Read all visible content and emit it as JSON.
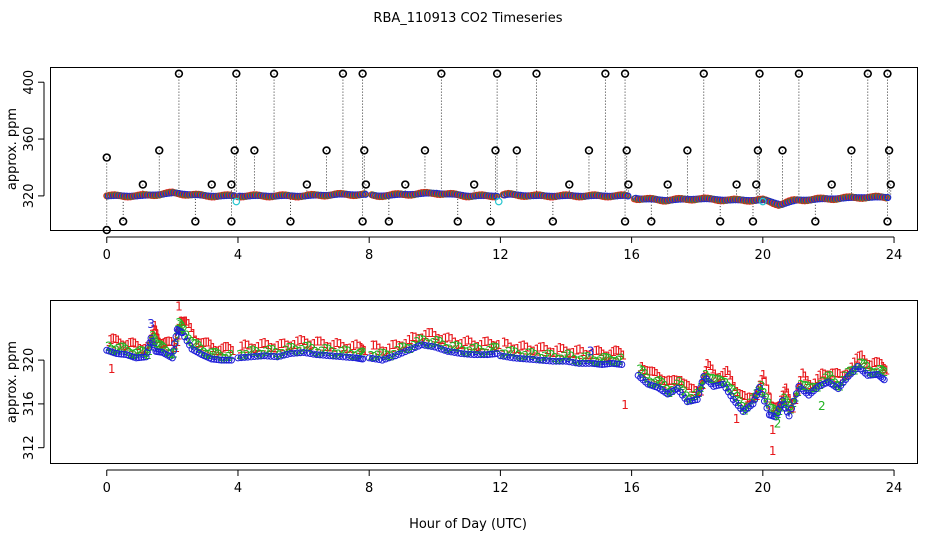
{
  "title": "RBA_110913  CO2 Timeseries",
  "xlabel": "Hour of Day (UTC)",
  "chart_data": [
    {
      "type": "scatter",
      "ylabel": "approx. ppm",
      "xlim": [
        -1.7,
        24.7
      ],
      "ylim": [
        296,
        410
      ],
      "x_ticks": [
        0,
        4,
        8,
        12,
        16,
        20,
        24
      ],
      "y_ticks": [
        320,
        360,
        400
      ],
      "colors": {
        "series_1": "#e8161a",
        "series_2": "#22b322",
        "series_3": "#1f1fd8",
        "cyan": "#26c6d0",
        "outlier": "#000000"
      },
      "baseline": [
        [
          0,
          320
        ],
        [
          1,
          320
        ],
        [
          2,
          322
        ],
        [
          3,
          320
        ],
        [
          4,
          320
        ],
        [
          5,
          320
        ],
        [
          6,
          320
        ],
        [
          7,
          321
        ],
        [
          7.8,
          321
        ],
        [
          8.2,
          320
        ],
        [
          9,
          321
        ],
        [
          10,
          322
        ],
        [
          11,
          320
        ],
        [
          11.9,
          320
        ],
        [
          12.2,
          321
        ],
        [
          13,
          320
        ],
        [
          14,
          320
        ],
        [
          15,
          320
        ],
        [
          15.8,
          320
        ],
        [
          16.2,
          318
        ],
        [
          17,
          317
        ],
        [
          18,
          318
        ],
        [
          19,
          317
        ],
        [
          20,
          317
        ],
        [
          20.5,
          314
        ],
        [
          21,
          317
        ],
        [
          22,
          318
        ],
        [
          23,
          319
        ],
        [
          23.8,
          319
        ]
      ],
      "spikes": [
        {
          "x": 0.0,
          "top": 347,
          "bottom": 296
        },
        {
          "x": 0.5,
          "top": 320,
          "bottom": 302
        },
        {
          "x": 1.1,
          "top": 328,
          "bottom": 320
        },
        {
          "x": 1.6,
          "top": 352,
          "bottom": 320
        },
        {
          "x": 2.2,
          "top": 406,
          "bottom": 320
        },
        {
          "x": 2.7,
          "top": 320,
          "bottom": 302
        },
        {
          "x": 3.2,
          "top": 328,
          "bottom": 320
        },
        {
          "x": 3.8,
          "top": 328,
          "bottom": 302
        },
        {
          "x": 3.9,
          "top": 352,
          "bottom": 320
        },
        {
          "x": 3.95,
          "top": 406,
          "bottom": 320
        },
        {
          "x": 4.5,
          "top": 352,
          "bottom": 320
        },
        {
          "x": 5.1,
          "top": 406,
          "bottom": 320
        },
        {
          "x": 5.6,
          "top": 320,
          "bottom": 302
        },
        {
          "x": 6.1,
          "top": 328,
          "bottom": 320
        },
        {
          "x": 6.7,
          "top": 352,
          "bottom": 320
        },
        {
          "x": 7.2,
          "top": 406,
          "bottom": 320
        },
        {
          "x": 7.8,
          "top": 406,
          "bottom": 302
        },
        {
          "x": 7.85,
          "top": 352,
          "bottom": 320
        },
        {
          "x": 7.9,
          "top": 328,
          "bottom": 320
        },
        {
          "x": 8.6,
          "top": 320,
          "bottom": 302
        },
        {
          "x": 9.1,
          "top": 328,
          "bottom": 320
        },
        {
          "x": 9.7,
          "top": 352,
          "bottom": 320
        },
        {
          "x": 10.2,
          "top": 406,
          "bottom": 320
        },
        {
          "x": 10.7,
          "top": 320,
          "bottom": 302
        },
        {
          "x": 11.2,
          "top": 328,
          "bottom": 320
        },
        {
          "x": 11.7,
          "top": 320,
          "bottom": 302
        },
        {
          "x": 11.85,
          "top": 352,
          "bottom": 320
        },
        {
          "x": 11.9,
          "top": 406,
          "bottom": 320
        },
        {
          "x": 12.5,
          "top": 352,
          "bottom": 320
        },
        {
          "x": 13.1,
          "top": 406,
          "bottom": 320
        },
        {
          "x": 13.6,
          "top": 320,
          "bottom": 302
        },
        {
          "x": 14.1,
          "top": 328,
          "bottom": 320
        },
        {
          "x": 14.7,
          "top": 352,
          "bottom": 320
        },
        {
          "x": 15.2,
          "top": 406,
          "bottom": 320
        },
        {
          "x": 15.8,
          "top": 406,
          "bottom": 302
        },
        {
          "x": 15.85,
          "top": 352,
          "bottom": 320
        },
        {
          "x": 15.9,
          "top": 328,
          "bottom": 320
        },
        {
          "x": 16.6,
          "top": 318,
          "bottom": 302
        },
        {
          "x": 17.1,
          "top": 328,
          "bottom": 318
        },
        {
          "x": 17.7,
          "top": 352,
          "bottom": 318
        },
        {
          "x": 18.2,
          "top": 406,
          "bottom": 318
        },
        {
          "x": 18.7,
          "top": 317,
          "bottom": 302
        },
        {
          "x": 19.2,
          "top": 328,
          "bottom": 317
        },
        {
          "x": 19.7,
          "top": 317,
          "bottom": 302
        },
        {
          "x": 19.8,
          "top": 328,
          "bottom": 317
        },
        {
          "x": 19.85,
          "top": 352,
          "bottom": 317
        },
        {
          "x": 19.9,
          "top": 406,
          "bottom": 317
        },
        {
          "x": 20.6,
          "top": 352,
          "bottom": 314
        },
        {
          "x": 21.1,
          "top": 406,
          "bottom": 317
        },
        {
          "x": 21.6,
          "top": 318,
          "bottom": 302
        },
        {
          "x": 22.1,
          "top": 328,
          "bottom": 318
        },
        {
          "x": 22.7,
          "top": 352,
          "bottom": 319
        },
        {
          "x": 23.2,
          "top": 406,
          "bottom": 319
        },
        {
          "x": 23.8,
          "top": 406,
          "bottom": 302
        },
        {
          "x": 23.85,
          "top": 352,
          "bottom": 319
        },
        {
          "x": 23.9,
          "top": 328,
          "bottom": 319
        }
      ],
      "cyan_points": [
        [
          3.95,
          316
        ],
        [
          11.95,
          316
        ],
        [
          20.0,
          316
        ]
      ]
    },
    {
      "type": "scatter",
      "ylabel": "approx. ppm",
      "xlim": [
        -1.7,
        24.7
      ],
      "ylim": [
        310.6,
        325.4
      ],
      "x_ticks": [
        0,
        4,
        8,
        12,
        16,
        20,
        24
      ],
      "y_ticks": [
        312,
        316,
        320
      ],
      "series_labels": [
        "1",
        "2",
        "3"
      ],
      "colors": {
        "series_1": "#e8161a",
        "series_2": "#22b322",
        "series_3": "#1f1fd8",
        "circle": "#1f1fd8"
      },
      "segments": [
        {
          "x": [
            0.0,
            0.3,
            0.6,
            0.9,
            1.2,
            1.35,
            1.5,
            1.7,
            2.0,
            2.15,
            2.3,
            2.6,
            2.9,
            3.2,
            3.5,
            3.8
          ],
          "y": [
            320.9,
            320.6,
            320.5,
            320.2,
            320.3,
            322.0,
            320.8,
            320.7,
            320.2,
            322.8,
            322.5,
            321.0,
            320.5,
            320.1,
            320.0,
            320.0
          ]
        },
        {
          "x": [
            4.0,
            4.4,
            4.8,
            5.2,
            5.6,
            6.0,
            6.4,
            6.8,
            7.2,
            7.6,
            7.8
          ],
          "y": [
            320.2,
            320.3,
            320.4,
            320.3,
            320.6,
            320.7,
            320.5,
            320.4,
            320.3,
            320.2,
            320.1
          ]
        },
        {
          "x": [
            8.0,
            8.4,
            8.8,
            9.2,
            9.6,
            10.0,
            10.4,
            10.8,
            11.2,
            11.6,
            11.9
          ],
          "y": [
            320.2,
            320.0,
            320.4,
            320.9,
            321.4,
            321.2,
            320.8,
            320.6,
            320.5,
            320.5,
            320.6
          ]
        },
        {
          "x": [
            12.0,
            12.4,
            12.8,
            13.2,
            13.6,
            14.0,
            14.4,
            14.8,
            15.1,
            15.4,
            15.7
          ],
          "y": [
            320.4,
            320.2,
            320.1,
            320.0,
            319.9,
            319.9,
            319.7,
            319.7,
            319.6,
            319.7,
            319.6
          ]
        },
        {
          "x": [
            16.2,
            16.5,
            16.8,
            17.1,
            17.4,
            17.7,
            18.0,
            18.2,
            18.5,
            18.8,
            19.1,
            19.4,
            19.7,
            19.9,
            20.2,
            20.4,
            20.6,
            20.8,
            21.1,
            21.4,
            21.7,
            22.0,
            22.3,
            22.6,
            22.9,
            23.2,
            23.5,
            23.7
          ],
          "y": [
            318.6,
            317.8,
            317.5,
            316.9,
            317.4,
            316.2,
            316.4,
            318.5,
            317.6,
            317.8,
            316.4,
            315.3,
            316.0,
            317.5,
            315.0,
            314.8,
            316.3,
            314.9,
            317.6,
            316.8,
            317.6,
            318.0,
            317.4,
            318.5,
            319.4,
            318.6,
            318.7,
            318.2
          ]
        }
      ],
      "extra_labels": [
        {
          "s": "1",
          "x": 0.15,
          "y": 319.2
        },
        {
          "s": "1",
          "x": 15.8,
          "y": 315.9
        },
        {
          "s": "1",
          "x": 20.3,
          "y": 311.7
        },
        {
          "s": "1",
          "x": 20.3,
          "y": 313.6
        },
        {
          "s": "1",
          "x": 19.2,
          "y": 314.6
        },
        {
          "s": "2",
          "x": 20.45,
          "y": 314.2
        },
        {
          "s": "2",
          "x": 21.8,
          "y": 315.8
        },
        {
          "s": "3",
          "x": 14.75,
          "y": 320.8
        },
        {
          "s": "3",
          "x": 1.35,
          "y": 323.3
        },
        {
          "s": "1",
          "x": 2.2,
          "y": 324.9
        }
      ]
    }
  ]
}
